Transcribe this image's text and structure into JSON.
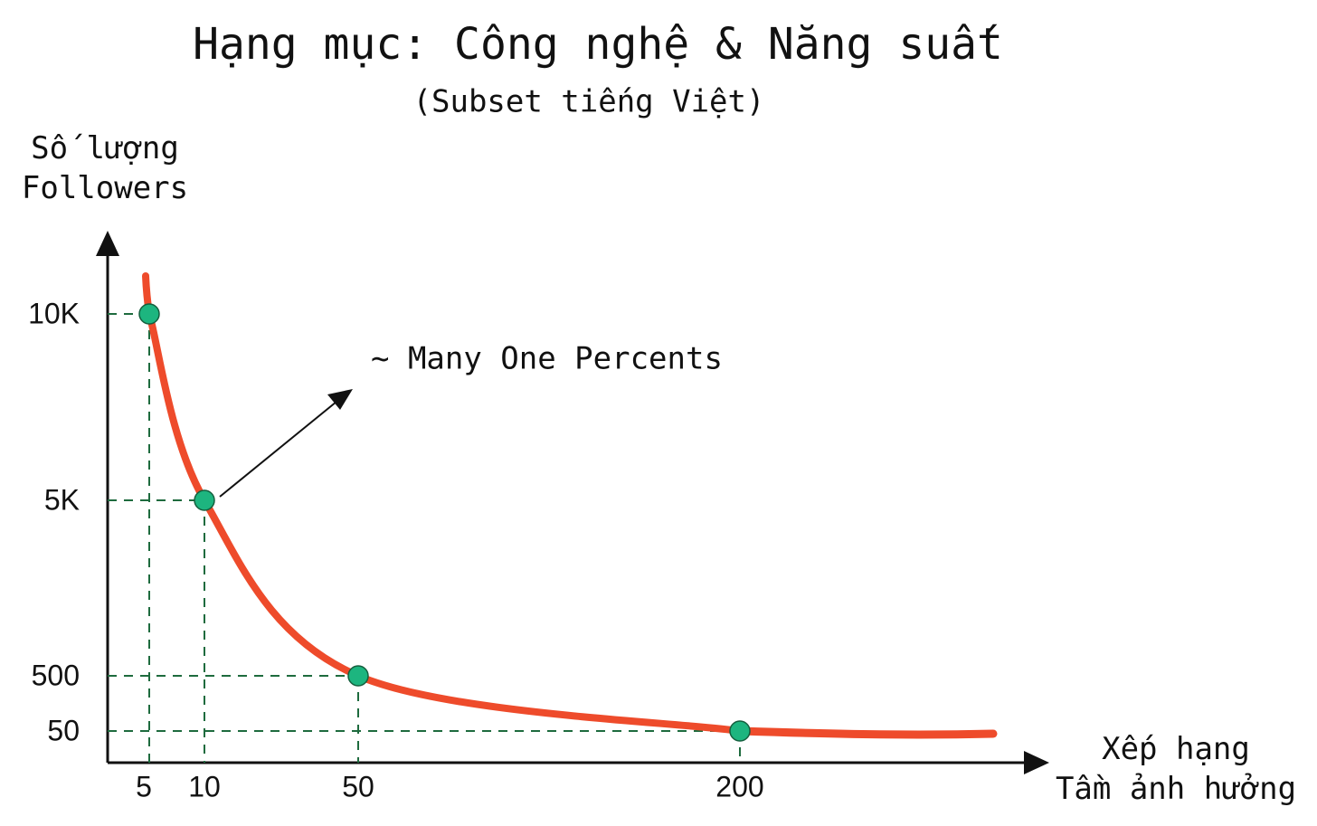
{
  "chart_data": {
    "type": "line",
    "title": "Hạng mục: Công nghệ & Năng suất",
    "subtitle": "(Subset tiếng Việt)",
    "ylabel": "Số lượng\nFollowers",
    "xlabel": "Xếp hạng\nTầm ảnh hưởng",
    "annotation": "~ Many One Percents",
    "x": [
      5,
      10,
      50,
      200
    ],
    "series": [
      {
        "name": "Followers",
        "color": "#ee4b2b",
        "values": [
          10000,
          5000,
          500,
          50
        ]
      }
    ],
    "point_color": "#1db57f",
    "guide_color": "#1e6b3e",
    "xticks": [
      5,
      10,
      50,
      200
    ],
    "yticks": [
      {
        "value": 10000,
        "label": "10K"
      },
      {
        "value": 5000,
        "label": "5K"
      },
      500,
      50
    ]
  }
}
